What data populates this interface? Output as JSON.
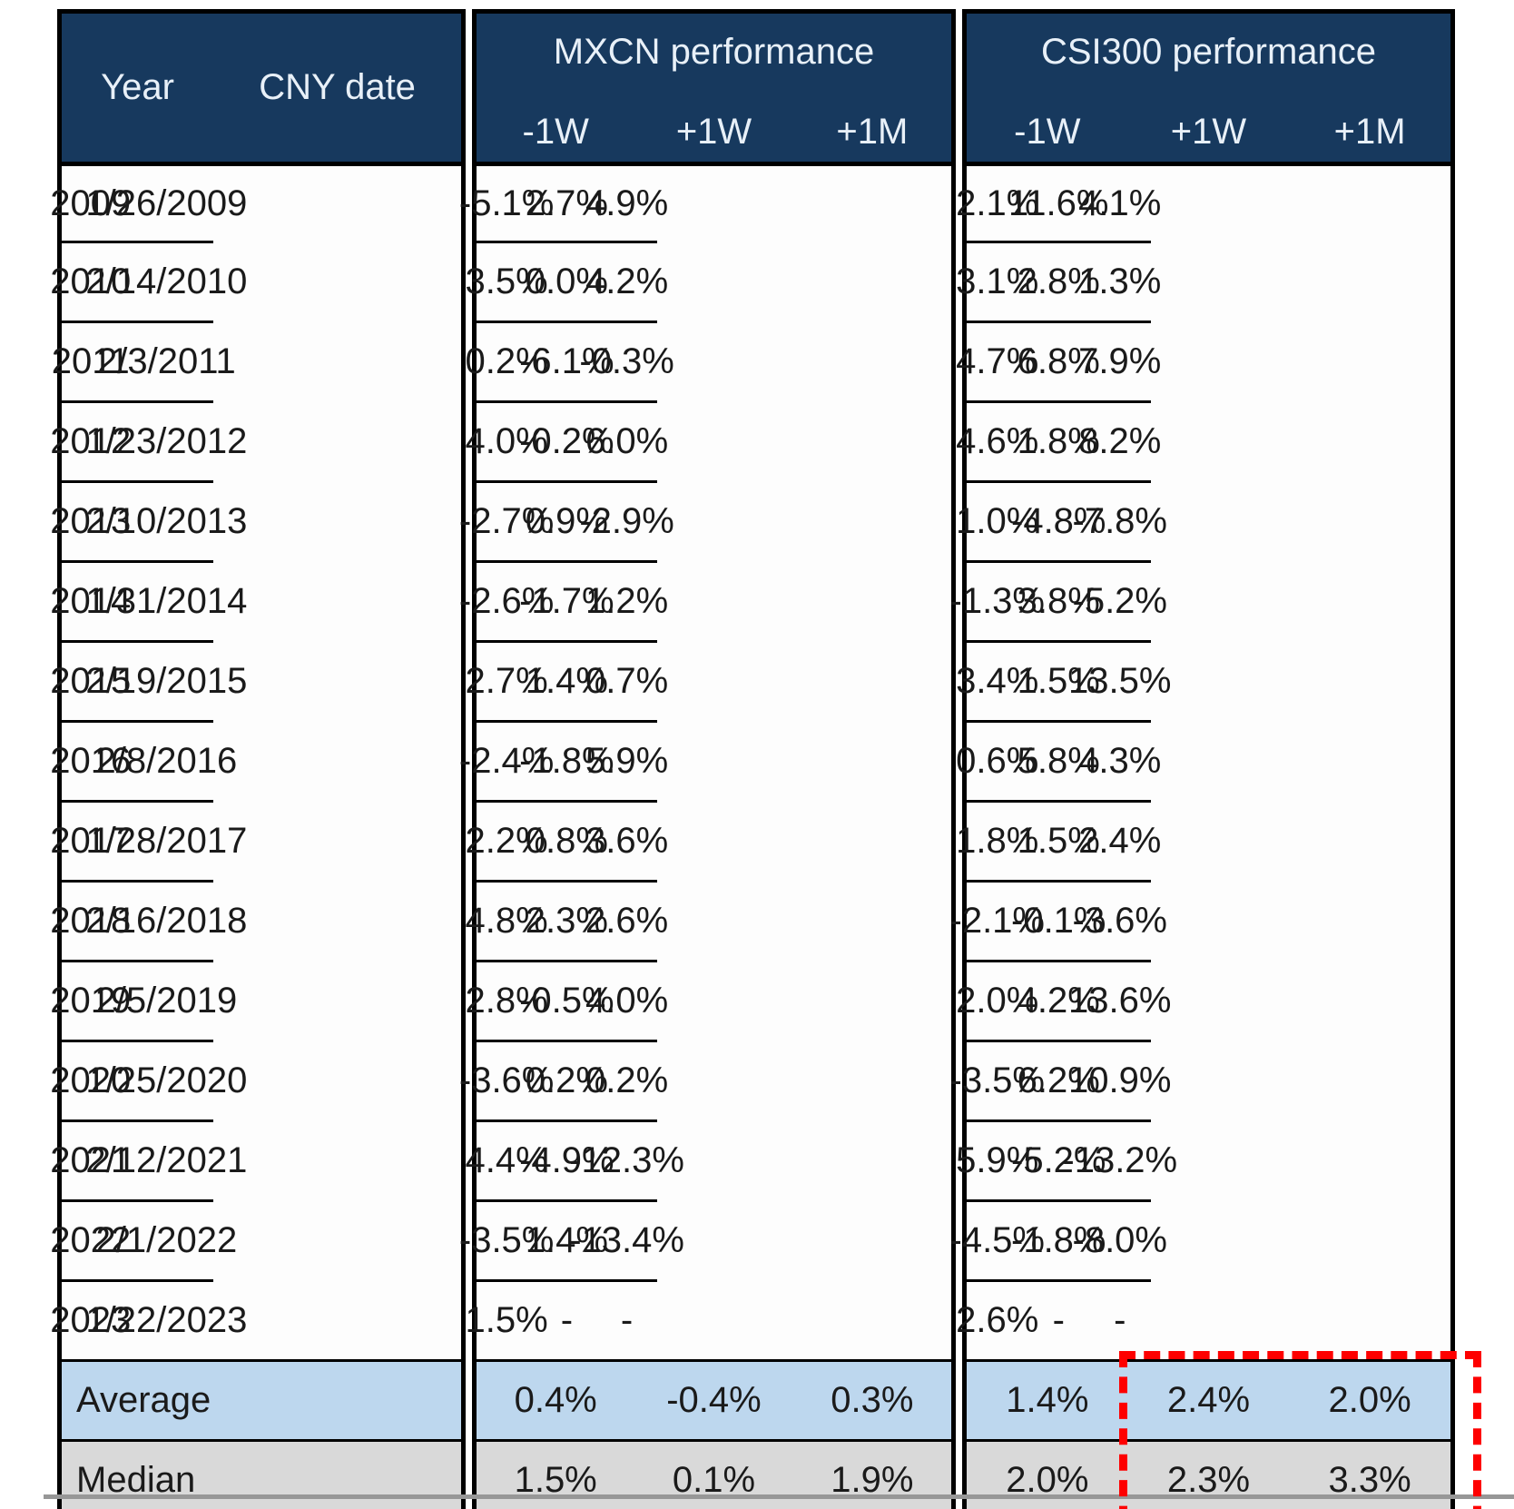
{
  "chart_data": {
    "type": "table",
    "column_groups": [
      {
        "label": "",
        "columns": [
          "Year",
          "CNY date"
        ]
      },
      {
        "label": "MXCN performance",
        "columns": [
          "-1W",
          "+1W",
          "+1M"
        ]
      },
      {
        "label": "CSI300 performance",
        "columns": [
          "-1W",
          "+1W",
          "+1M"
        ]
      }
    ],
    "rows": [
      {
        "kind": "year",
        "cells": [
          "2009",
          "1/26/2009",
          "-5.1%",
          "2.7%",
          "4.9%",
          "2.1%",
          "11.6%",
          "4.1%"
        ]
      },
      {
        "kind": "year",
        "cells": [
          "2010",
          "2/14/2010",
          "3.5%",
          "0.0%",
          "4.2%",
          "3.1%",
          "2.8%",
          "1.3%"
        ]
      },
      {
        "kind": "year",
        "cells": [
          "2011",
          "2/3/2011",
          "0.2%",
          "-6.1%",
          "-0.3%",
          "4.7%",
          "6.8%",
          "7.9%"
        ]
      },
      {
        "kind": "year",
        "cells": [
          "2012",
          "1/23/2012",
          "4.0%",
          "-0.2%",
          "6.0%",
          "4.6%",
          "1.8%",
          "8.2%"
        ]
      },
      {
        "kind": "year",
        "cells": [
          "2013",
          "2/10/2013",
          "-2.7%",
          "0.9%",
          "-2.9%",
          "1.0%",
          "-4.8%",
          "-7.8%"
        ]
      },
      {
        "kind": "year",
        "cells": [
          "2014",
          "1/31/2014",
          "-2.6%",
          "-1.7%",
          "1.2%",
          "-1.3%",
          "3.8%",
          "-5.2%"
        ]
      },
      {
        "kind": "year",
        "cells": [
          "2015",
          "2/19/2015",
          "2.7%",
          "1.4%",
          "0.7%",
          "3.4%",
          "1.5%",
          "13.5%"
        ]
      },
      {
        "kind": "year",
        "cells": [
          "2016",
          "2/8/2016",
          "-2.4%",
          "-1.8%",
          "5.9%",
          "0.6%",
          "5.8%",
          "4.3%"
        ]
      },
      {
        "kind": "year",
        "cells": [
          "2017",
          "1/28/2017",
          "2.2%",
          "0.8%",
          "3.6%",
          "1.8%",
          "1.5%",
          "2.4%"
        ]
      },
      {
        "kind": "year",
        "cells": [
          "2018",
          "2/16/2018",
          "4.8%",
          "2.3%",
          "2.6%",
          "-2.1%",
          "-0.1%",
          "-3.6%"
        ]
      },
      {
        "kind": "year",
        "cells": [
          "2019",
          "2/5/2019",
          "2.8%",
          "-0.5%",
          "4.0%",
          "2.0%",
          "4.2%",
          "13.6%"
        ]
      },
      {
        "kind": "year",
        "cells": [
          "2020",
          "1/25/2020",
          "-3.6%",
          "0.2%",
          "0.2%",
          "-3.5%",
          "6.2%",
          "10.9%"
        ]
      },
      {
        "kind": "year",
        "cells": [
          "2021",
          "2/12/2021",
          "4.4%",
          "-4.9%",
          "-12.3%",
          "5.9%",
          "-5.2%",
          "-13.2%"
        ]
      },
      {
        "kind": "year",
        "cells": [
          "2022",
          "2/1/2022",
          "-3.5%",
          "1.4%",
          "-13.4%",
          "-4.5%",
          "-1.8%",
          "-8.0%"
        ]
      },
      {
        "kind": "year",
        "cells": [
          "2023",
          "1/22/2023",
          "1.5%",
          "-",
          "-",
          "2.6%",
          "-",
          "-"
        ]
      },
      {
        "kind": "average",
        "cells": [
          "Average",
          "",
          "0.4%",
          "-0.4%",
          "0.3%",
          "1.4%",
          "2.4%",
          "2.0%"
        ],
        "highlighted_cells": [
          6,
          7
        ]
      },
      {
        "kind": "median",
        "cells": [
          "Median",
          "",
          "1.5%",
          "0.1%",
          "1.9%",
          "2.0%",
          "2.3%",
          "3.3%"
        ],
        "highlighted_cells": [
          6,
          7
        ]
      }
    ],
    "annotations": {
      "highlight": "red dashed box around CSI300 +1W and +1M values in Average and Median rows",
      "highlight_color": "#FE0000"
    },
    "layout": {
      "grid": "on",
      "header_position": "top"
    }
  },
  "colors": {
    "header_bg": "#17395E",
    "header_text": "#E8F0F8",
    "average_row_bg": "#BDD7EE",
    "median_row_bg": "#D9D9D9",
    "border": "#000000",
    "highlight_border": "#FE0000",
    "footer_rule": "#979797"
  }
}
